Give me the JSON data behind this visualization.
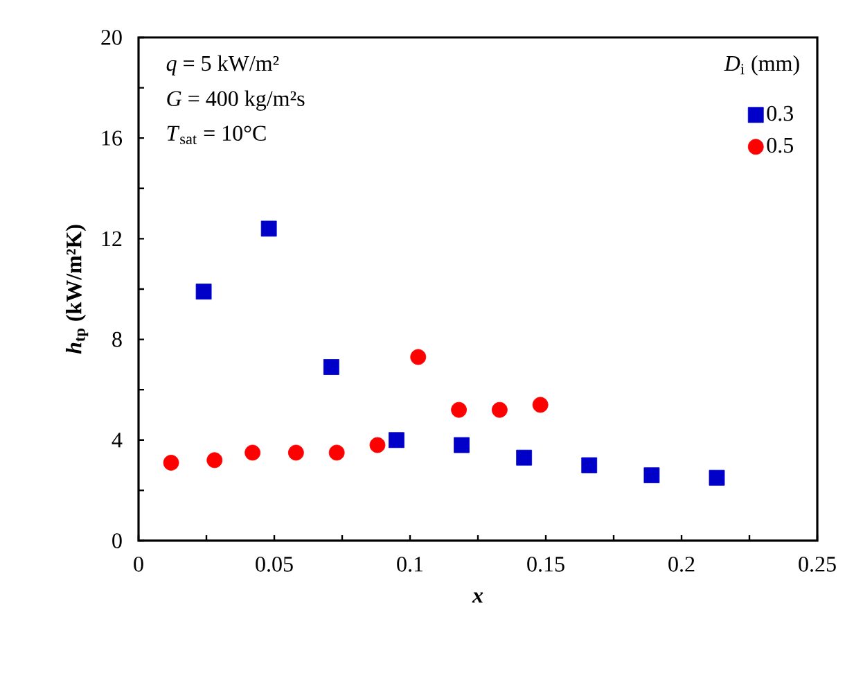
{
  "chart_data": {
    "type": "scatter",
    "xlabel": "x",
    "ylabel": "*h*$_{tp}$ (kW/m²K)",
    "legend_title": "*D*$_{i}$ (mm)",
    "annotations": [
      "*q* = 5 kW/m²",
      "*G* = 400 kg/m²s",
      "*T*$_{sat}$ = 10°C"
    ],
    "xlim": [
      0,
      0.25
    ],
    "ylim": [
      0,
      20
    ],
    "xticks": [
      0,
      {
        "value": 0.025,
        "label": null
      },
      0.05,
      {
        "value": 0.075,
        "label": null
      },
      0.1,
      {
        "value": 0.125,
        "label": null
      },
      0.15,
      {
        "value": 0.175,
        "label": null
      },
      0.2,
      {
        "value": 0.225,
        "label": null
      },
      0.25
    ],
    "yticks": [
      0,
      {
        "value": 2,
        "label": null
      },
      4,
      {
        "value": 6,
        "label": null
      },
      8,
      {
        "value": 10,
        "label": null
      },
      12,
      {
        "value": 14,
        "label": null
      },
      16,
      {
        "value": 18,
        "label": null
      },
      20
    ],
    "legend": "top right",
    "series": [
      {
        "name": "0.3",
        "color": "#0000c8",
        "marker": "square",
        "x": [
          0.024,
          0.048,
          0.071,
          0.095,
          0.119,
          0.142,
          0.166,
          0.189,
          0.213
        ],
        "values": [
          9.9,
          12.4,
          6.9,
          4.0,
          3.8,
          3.3,
          3.0,
          2.6,
          2.5
        ]
      },
      {
        "name": "0.5",
        "color": "#ff0000",
        "marker": "circle",
        "x": [
          0.012,
          0.028,
          0.042,
          0.058,
          0.073,
          0.088,
          0.103,
          0.118,
          0.133,
          0.148
        ],
        "values": [
          3.1,
          3.2,
          3.5,
          3.5,
          3.5,
          3.8,
          7.3,
          5.2,
          5.2,
          5.4
        ]
      }
    ]
  }
}
